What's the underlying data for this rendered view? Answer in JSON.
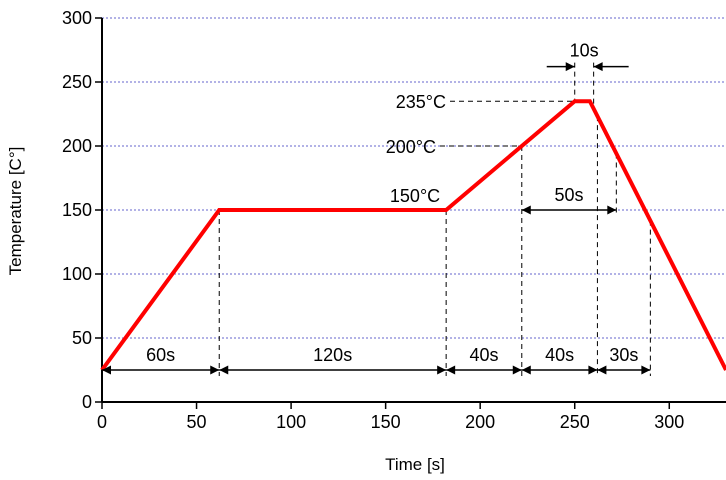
{
  "chart_data": {
    "type": "line",
    "title": "",
    "xlabel": "Time [s]",
    "ylabel": "Temperature [C°]",
    "xlim": [
      0,
      330
    ],
    "ylim": [
      0,
      300
    ],
    "x_ticks": [
      0,
      50,
      100,
      150,
      200,
      250,
      300
    ],
    "y_ticks": [
      0,
      50,
      100,
      150,
      200,
      250,
      300
    ],
    "grid": "horizontal dotted",
    "colors": {
      "profile": "#ff0000",
      "grid": "#6666cc",
      "axis": "#000000"
    },
    "series": [
      {
        "x": [
          0,
          62,
          182,
          222,
          250,
          258,
          330
        ],
        "y": [
          25,
          150,
          150,
          200,
          235,
          235,
          25
        ]
      }
    ],
    "annotations": {
      "temperatures": [
        {
          "label": "150°C",
          "x": 182,
          "y": 150
        },
        {
          "label": "200°C",
          "x": 222,
          "y": 200
        },
        {
          "label": "235°C",
          "x": 250,
          "y": 235
        }
      ],
      "durations": [
        {
          "label": "60s",
          "x_start": 0,
          "x_end": 62,
          "y": 25
        },
        {
          "label": "120s",
          "x_start": 62,
          "x_end": 182,
          "y": 25
        },
        {
          "label": "40s",
          "x_start": 182,
          "x_end": 222,
          "y": 25
        },
        {
          "label": "40s",
          "x_start": 222,
          "x_end": 262,
          "y": 25
        },
        {
          "label": "30s",
          "x_start": 262,
          "x_end": 290,
          "y": 25
        },
        {
          "label": "50s",
          "x_start": 222,
          "x_end": 272,
          "y": 150
        },
        {
          "label": "10s",
          "x_start": 250,
          "x_end": 260,
          "y": 262
        }
      ]
    }
  }
}
